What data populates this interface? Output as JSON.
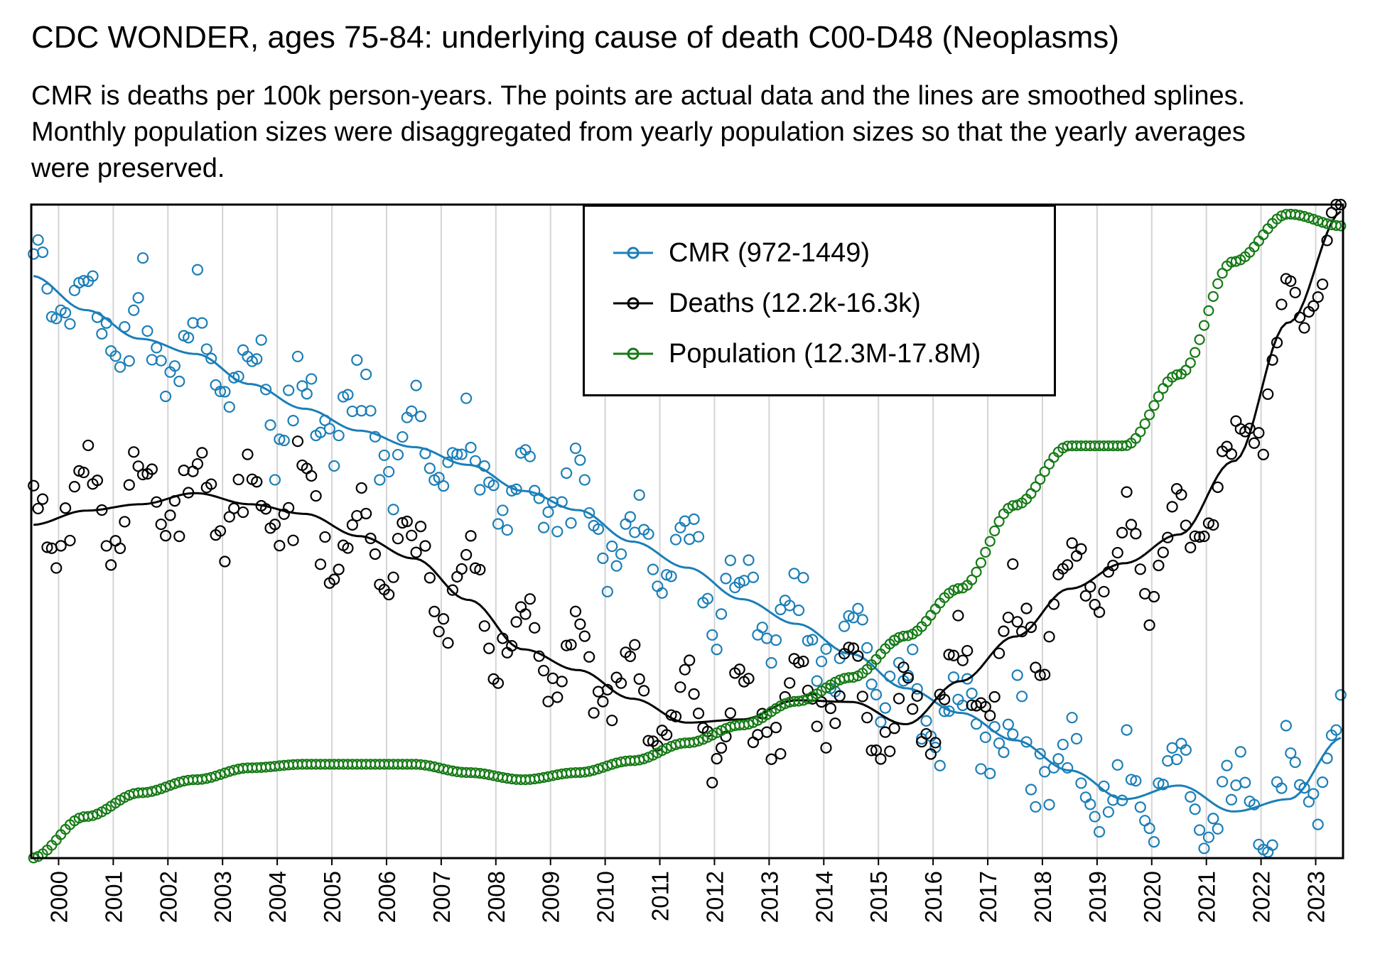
{
  "title": "CDC WONDER, ages 75-84: underlying cause of death C00-D48 (Neoplasms)",
  "subtitle": "CMR is deaths per 100k person-years. The points are actual data and the lines are smoothed splines. Monthly population sizes were disaggregated from yearly population sizes so that the yearly averages were preserved.",
  "legend": {
    "items": [
      {
        "label": "CMR (972-1449)",
        "color": "#1b7fb8"
      },
      {
        "label": "Deaths (12.2k-16.3k)",
        "color": "#000000"
      },
      {
        "label": "Population (12.3M-17.8M)",
        "color": "#157a15"
      }
    ]
  },
  "chart_data": {
    "type": "scatter",
    "x_axis": {
      "label": "",
      "tick_labels": [
        "2000",
        "2001",
        "2002",
        "2003",
        "2004",
        "2005",
        "2006",
        "2007",
        "2008",
        "2009",
        "2010",
        "2011",
        "2012",
        "2013",
        "2014",
        "2015",
        "2016",
        "2017",
        "2018",
        "2019",
        "2020",
        "2021",
        "2022",
        "2023"
      ],
      "range": [
        2000.0,
        2024.0
      ]
    },
    "y_axis": {
      "label": "",
      "ticks_shown": false,
      "note": "each series normalized to its own min-max range shown in the legend"
    },
    "grid": "vertical lines at each year",
    "legend_position": "top-center",
    "series": [
      {
        "name": "CMR (972-1449)",
        "color": "#1b7fb8",
        "range": [
          972,
          1449
        ],
        "points": "monthly",
        "smoothed_line": true,
        "yearly_smooth": [
          [
            2000.0,
            1397
          ],
          [
            2001.0,
            1372
          ],
          [
            2002.0,
            1351
          ],
          [
            2003.0,
            1340
          ],
          [
            2004.0,
            1318
          ],
          [
            2005.0,
            1300
          ],
          [
            2006.0,
            1284
          ],
          [
            2007.0,
            1272
          ],
          [
            2008.0,
            1259
          ],
          [
            2009.0,
            1240
          ],
          [
            2010.0,
            1226
          ],
          [
            2011.0,
            1203
          ],
          [
            2012.0,
            1184
          ],
          [
            2013.0,
            1161
          ],
          [
            2014.0,
            1143
          ],
          [
            2015.0,
            1121
          ],
          [
            2016.0,
            1096
          ],
          [
            2017.0,
            1078
          ],
          [
            2018.0,
            1058
          ],
          [
            2019.0,
            1036
          ],
          [
            2020.0,
            1015
          ],
          [
            2021.0,
            1025
          ],
          [
            2022.0,
            1006
          ],
          [
            2023.0,
            1015
          ],
          [
            2024.0,
            1060
          ]
        ]
      },
      {
        "name": "Deaths (12.2k-16.3k)",
        "color": "#000000",
        "range": [
          12200,
          16300
        ],
        "points": "monthly",
        "smoothed_line": true,
        "yearly_smooth": [
          [
            2000.0,
            14290
          ],
          [
            2001.0,
            14380
          ],
          [
            2002.0,
            14420
          ],
          [
            2003.0,
            14490
          ],
          [
            2004.0,
            14420
          ],
          [
            2005.0,
            14360
          ],
          [
            2006.0,
            14220
          ],
          [
            2007.0,
            14080
          ],
          [
            2008.0,
            13820
          ],
          [
            2009.0,
            13510
          ],
          [
            2010.0,
            13380
          ],
          [
            2011.0,
            13200
          ],
          [
            2012.0,
            13050
          ],
          [
            2013.0,
            13070
          ],
          [
            2014.0,
            13190
          ],
          [
            2015.0,
            13180
          ],
          [
            2016.0,
            13040
          ],
          [
            2017.0,
            13310
          ],
          [
            2018.0,
            13590
          ],
          [
            2019.0,
            13890
          ],
          [
            2020.0,
            14050
          ],
          [
            2021.0,
            14230
          ],
          [
            2022.0,
            14690
          ],
          [
            2023.0,
            15560
          ],
          [
            2024.0,
            16260
          ]
        ]
      },
      {
        "name": "Population (12.3M-17.8M)",
        "color": "#157a15",
        "range": [
          12.3,
          17.8
        ],
        "points": "monthly",
        "yearly_values": [
          [
            2000.0,
            12.3
          ],
          [
            2001.0,
            12.65
          ],
          [
            2002.0,
            12.85
          ],
          [
            2003.0,
            12.96
          ],
          [
            2004.0,
            13.06
          ],
          [
            2005.0,
            13.09
          ],
          [
            2006.0,
            13.09
          ],
          [
            2007.0,
            13.09
          ],
          [
            2008.0,
            13.02
          ],
          [
            2009.0,
            12.96
          ],
          [
            2010.0,
            13.02
          ],
          [
            2011.0,
            13.12
          ],
          [
            2012.0,
            13.27
          ],
          [
            2013.0,
            13.42
          ],
          [
            2014.0,
            13.62
          ],
          [
            2015.0,
            13.82
          ],
          [
            2016.0,
            14.17
          ],
          [
            2017.0,
            14.57
          ],
          [
            2018.0,
            15.27
          ],
          [
            2019.0,
            15.77
          ],
          [
            2020.0,
            15.77
          ],
          [
            2021.0,
            16.37
          ],
          [
            2022.0,
            17.32
          ],
          [
            2023.0,
            17.72
          ],
          [
            2024.0,
            17.62
          ]
        ]
      }
    ]
  }
}
